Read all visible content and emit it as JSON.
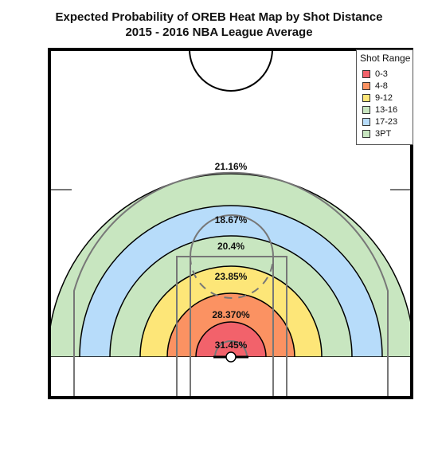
{
  "chart_data": {
    "type": "heatmap",
    "title": "Expected Probability of OREB Heat Map by Shot Distance",
    "subtitle": "2015 - 2016 NBA League Average",
    "legend": {
      "title": "Shot Range",
      "position": "top-right"
    },
    "series": [
      {
        "name": "0-3",
        "value": 31.45,
        "label": "31.45%",
        "color": "#f2626b"
      },
      {
        "name": "4-8",
        "value": 28.37,
        "label": "28.370%",
        "color": "#fb9262"
      },
      {
        "name": "9-12",
        "value": 23.85,
        "label": "23.85%",
        "color": "#fde678"
      },
      {
        "name": "13-16",
        "value": 20.4,
        "label": "20.4%",
        "color": "#c8e6c0"
      },
      {
        "name": "17-23",
        "value": 18.67,
        "label": "18.67%",
        "color": "#b7dcfa"
      },
      {
        "name": "3PT",
        "value": 21.16,
        "label": "21.16%",
        "color": "#c8e6c0"
      }
    ]
  }
}
